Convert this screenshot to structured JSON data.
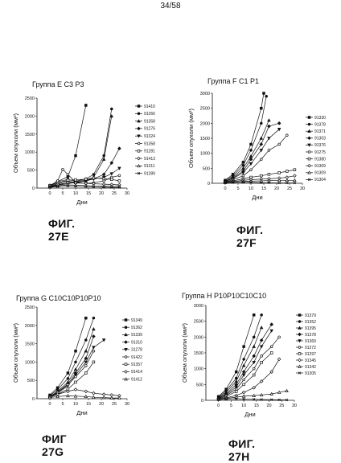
{
  "page": {
    "number": "34/58"
  },
  "chart_data": [
    {
      "id": "E",
      "type": "line",
      "title": "Группа E C3 P3",
      "caption": "ФИГ. 27E",
      "xlabel": "Дни",
      "ylabel": "Объем опухоли (мм³)",
      "xlim": [
        -5,
        30
      ],
      "ylim": [
        0,
        2500
      ],
      "xticks": [
        0,
        5,
        10,
        15,
        20,
        25,
        30
      ],
      "yticks": [
        0,
        500,
        1000,
        1500,
        2000,
        2500
      ],
      "ytick_labels": [
        "0",
        "500",
        "1000",
        "1500",
        "2000",
        "2500"
      ],
      "legend_position": "right",
      "series": [
        {
          "name": "91410",
          "x": [
            0,
            3,
            7,
            10,
            14
          ],
          "y": [
            60,
            180,
            320,
            900,
            2300
          ]
        },
        {
          "name": "91266",
          "x": [
            0,
            3,
            7,
            10,
            14,
            17,
            21,
            24
          ],
          "y": [
            80,
            180,
            240,
            190,
            260,
            380,
            900,
            2200
          ]
        },
        {
          "name": "91358",
          "x": [
            0,
            3,
            7,
            10,
            14,
            17,
            21,
            24
          ],
          "y": [
            50,
            120,
            200,
            150,
            200,
            300,
            800,
            2000
          ]
        },
        {
          "name": "91276",
          "x": [
            0,
            3,
            7,
            10,
            14,
            17,
            21,
            24,
            27
          ],
          "y": [
            40,
            90,
            150,
            180,
            220,
            260,
            380,
            700,
            1100
          ]
        },
        {
          "name": "91324",
          "x": [
            0,
            3,
            7,
            10,
            14,
            17,
            21,
            24,
            27
          ],
          "y": [
            30,
            80,
            120,
            160,
            200,
            250,
            300,
            400,
            550
          ]
        },
        {
          "name": "91358",
          "x": [
            0,
            3,
            5,
            7,
            10,
            14,
            17,
            21,
            24,
            27
          ],
          "y": [
            60,
            200,
            520,
            380,
            160,
            130,
            150,
            200,
            300,
            350
          ]
        },
        {
          "name": "91281",
          "x": [
            0,
            3,
            7,
            10,
            14,
            17,
            21,
            24,
            27
          ],
          "y": [
            70,
            140,
            220,
            230,
            250,
            280,
            260,
            240,
            200
          ]
        },
        {
          "name": "91413",
          "x": [
            0,
            3,
            7,
            10,
            14,
            17,
            21,
            24,
            27
          ],
          "y": [
            40,
            100,
            150,
            140,
            130,
            120,
            110,
            100,
            90
          ]
        },
        {
          "name": "91311",
          "x": [
            0,
            3,
            7,
            10,
            14,
            17,
            21,
            24,
            27
          ],
          "y": [
            30,
            60,
            90,
            80,
            70,
            60,
            55,
            50,
            45
          ]
        },
        {
          "name": "91289",
          "x": [
            0,
            3,
            7,
            10,
            14,
            17,
            21,
            24,
            27
          ],
          "y": [
            20,
            40,
            60,
            50,
            40,
            30,
            25,
            20,
            20
          ]
        }
      ]
    },
    {
      "id": "F",
      "type": "line",
      "title": "Группа F C1 P1",
      "caption": "ФИГ. 27F",
      "xlabel": "Дни",
      "ylabel": "Объем опухоли (мм³)",
      "xlim": [
        -5,
        30
      ],
      "ylim": [
        0,
        3000
      ],
      "xticks": [
        0,
        5,
        10,
        15,
        20,
        25,
        30
      ],
      "yticks": [
        0,
        500,
        1000,
        1500,
        2000,
        2500,
        3000
      ],
      "ytick_labels": [
        "0",
        "500",
        "1000",
        "1500",
        "2000",
        "2500",
        "3000"
      ],
      "legend_position": "right",
      "series": [
        {
          "name": "91330",
          "x": [
            0,
            3,
            7,
            10,
            14,
            15
          ],
          "y": [
            100,
            300,
            700,
            1300,
            2500,
            3000
          ]
        },
        {
          "name": "91378",
          "x": [
            0,
            3,
            7,
            10,
            14,
            16
          ],
          "y": [
            80,
            250,
            600,
            1100,
            2000,
            2900
          ]
        },
        {
          "name": "91371",
          "x": [
            0,
            3,
            7,
            10,
            14,
            17
          ],
          "y": [
            60,
            200,
            500,
            900,
            1500,
            2100
          ]
        },
        {
          "name": "91303",
          "x": [
            0,
            3,
            7,
            10,
            14,
            17,
            21
          ],
          "y": [
            50,
            180,
            400,
            800,
            1300,
            1900,
            2000
          ]
        },
        {
          "name": "91376",
          "x": [
            0,
            3,
            7,
            10,
            14,
            17,
            21
          ],
          "y": [
            60,
            160,
            350,
            650,
            1100,
            1500,
            1800
          ]
        },
        {
          "name": "91275",
          "x": [
            0,
            3,
            7,
            10,
            14,
            17,
            21,
            24
          ],
          "y": [
            40,
            120,
            250,
            450,
            800,
            1100,
            1300,
            1600
          ]
        },
        {
          "name": "91380",
          "x": [
            0,
            3,
            7,
            10,
            14,
            17,
            21,
            24,
            27
          ],
          "y": [
            30,
            80,
            150,
            200,
            250,
            300,
            350,
            400,
            450
          ]
        },
        {
          "name": "91369",
          "x": [
            0,
            3,
            7,
            10,
            14,
            17,
            21,
            24,
            27
          ],
          "y": [
            30,
            60,
            100,
            120,
            140,
            150,
            170,
            200,
            250
          ]
        },
        {
          "name": "91309",
          "x": [
            0,
            3,
            7,
            10,
            14,
            17,
            21,
            24,
            27
          ],
          "y": [
            20,
            40,
            60,
            70,
            80,
            90,
            100,
            100,
            100
          ]
        },
        {
          "name": "91304",
          "x": [
            0,
            3,
            7,
            10,
            14,
            17,
            21,
            24,
            27
          ],
          "y": [
            20,
            30,
            40,
            30,
            20,
            20,
            10,
            10,
            10
          ]
        }
      ]
    },
    {
      "id": "G",
      "type": "line",
      "title": "Группа G C10C10P10P10",
      "caption": "ФИГ 27G",
      "xlabel": "Дни",
      "ylabel": "Объем опухоли (мм³)",
      "xlim": [
        -5,
        30
      ],
      "ylim": [
        0,
        2500
      ],
      "xticks": [
        0,
        5,
        10,
        15,
        20,
        25,
        30
      ],
      "yticks": [
        0,
        500,
        1000,
        1500,
        2000,
        2500
      ],
      "ytick_labels": [
        "0",
        "500",
        "1000",
        "1500",
        "2000",
        "2500"
      ],
      "legend_position": "right",
      "series": [
        {
          "name": "91349",
          "x": [
            0,
            3,
            7,
            10,
            14
          ],
          "y": [
            100,
            300,
            700,
            1300,
            2200
          ]
        },
        {
          "name": "91362",
          "x": [
            0,
            3,
            7,
            10,
            14,
            17
          ],
          "y": [
            80,
            250,
            550,
            1000,
            1600,
            2200
          ]
        },
        {
          "name": "91339",
          "x": [
            0,
            3,
            7,
            10,
            14,
            17
          ],
          "y": [
            60,
            200,
            450,
            800,
            1300,
            1900
          ]
        },
        {
          "name": "91310",
          "x": [
            0,
            3,
            7,
            10,
            14,
            17
          ],
          "y": [
            70,
            180,
            400,
            700,
            1100,
            1700
          ]
        },
        {
          "name": "31278",
          "x": [
            0,
            3,
            7,
            10,
            14,
            17,
            21
          ],
          "y": [
            50,
            150,
            350,
            650,
            1000,
            1400,
            1600
          ]
        },
        {
          "name": "91422",
          "x": [
            0,
            3,
            7,
            10,
            14,
            17
          ],
          "y": [
            60,
            170,
            380,
            600,
            900,
            1300
          ]
        },
        {
          "name": "91357",
          "x": [
            0,
            3,
            7,
            10,
            14,
            17
          ],
          "y": [
            40,
            120,
            260,
            450,
            700,
            1000
          ]
        },
        {
          "name": "91414",
          "x": [
            0,
            3,
            7,
            10,
            14,
            17,
            21,
            24,
            27
          ],
          "y": [
            50,
            120,
            200,
            250,
            200,
            150,
            120,
            100,
            80
          ]
        },
        {
          "name": "91412",
          "x": [
            0,
            3,
            7,
            10,
            14,
            17,
            21,
            24,
            27
          ],
          "y": [
            30,
            60,
            80,
            70,
            60,
            40,
            30,
            20,
            20
          ]
        }
      ]
    },
    {
      "id": "H",
      "type": "line",
      "title": "Группа H P10P10C10C10",
      "caption": "ФИГ. 27H",
      "xlabel": "Дни",
      "ylabel": "Объем опухоли (мм³)",
      "xlim": [
        -5,
        30
      ],
      "ylim": [
        0,
        3000
      ],
      "xticks": [
        0,
        5,
        10,
        15,
        20,
        25,
        30
      ],
      "yticks": [
        0,
        500,
        1000,
        1500,
        2000,
        2500,
        3000
      ],
      "ytick_labels": [
        "0",
        "500",
        "1000",
        "1500",
        "2000",
        "2500",
        "3000"
      ],
      "legend_position": "right",
      "series": [
        {
          "name": "91379",
          "x": [
            0,
            3,
            7,
            10,
            14
          ],
          "y": [
            120,
            350,
            900,
            1700,
            2700
          ]
        },
        {
          "name": "91352",
          "x": [
            0,
            3,
            7,
            10,
            14,
            17
          ],
          "y": [
            100,
            300,
            700,
            1300,
            2000,
            2700
          ]
        },
        {
          "name": "91395",
          "x": [
            0,
            3,
            7,
            10,
            14,
            17
          ],
          "y": [
            80,
            250,
            600,
            1100,
            1700,
            2300
          ]
        },
        {
          "name": "91378",
          "x": [
            0,
            3,
            7,
            10,
            14,
            17,
            21
          ],
          "y": [
            60,
            200,
            500,
            900,
            1400,
            1900,
            2400
          ]
        },
        {
          "name": "91369",
          "x": [
            0,
            3,
            7,
            10,
            14,
            17,
            21
          ],
          "y": [
            70,
            180,
            420,
            800,
            1200,
            1700,
            2200
          ]
        },
        {
          "name": "91272",
          "x": [
            0,
            3,
            7,
            10,
            14,
            17,
            21,
            24
          ],
          "y": [
            50,
            150,
            350,
            650,
            1000,
            1400,
            1700,
            2000
          ]
        },
        {
          "name": "91297",
          "x": [
            0,
            3,
            7,
            10,
            14,
            17,
            21
          ],
          "y": [
            40,
            120,
            280,
            500,
            800,
            1200,
            1500
          ]
        },
        {
          "name": "91345",
          "x": [
            0,
            3,
            7,
            10,
            14,
            17,
            21,
            24
          ],
          "y": [
            30,
            80,
            150,
            250,
            400,
            600,
            900,
            1300
          ]
        },
        {
          "name": "91342",
          "x": [
            0,
            3,
            7,
            10,
            14,
            17,
            21,
            24,
            27
          ],
          "y": [
            30,
            60,
            100,
            130,
            150,
            170,
            200,
            250,
            300
          ]
        },
        {
          "name": "91305",
          "x": [
            0,
            3,
            7,
            10,
            14,
            17,
            21,
            24,
            27
          ],
          "y": [
            20,
            40,
            50,
            40,
            30,
            25,
            20,
            15,
            10
          ]
        }
      ]
    }
  ]
}
